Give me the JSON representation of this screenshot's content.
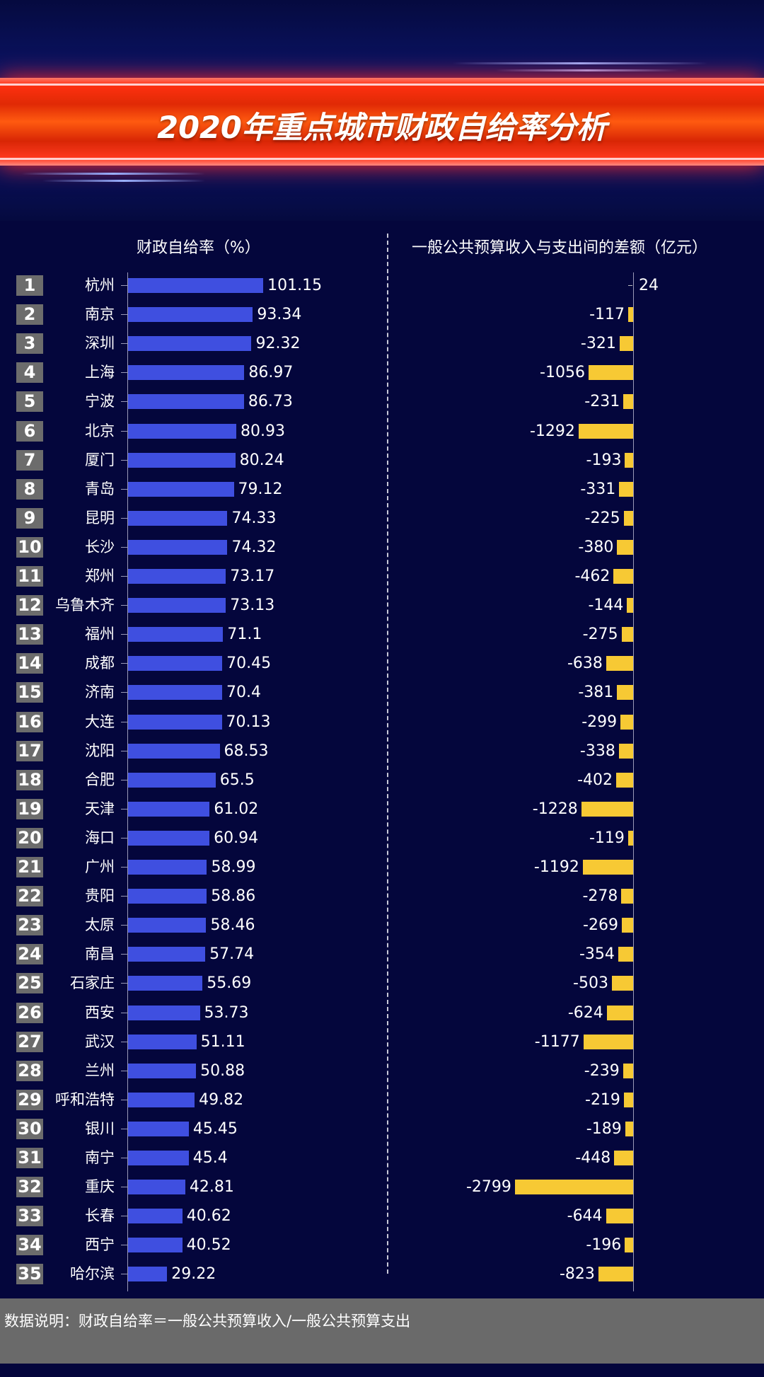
{
  "title": "2020年重点城市财政自给率分析",
  "footer_note": "数据说明：财政自给率＝一般公共预算收入/一般公共预算支出",
  "colors": {
    "background": "#04063c",
    "left_bar": "#3f4fe0",
    "right_bar": "#f7c934",
    "rank_box": "#6c6c6c",
    "banner": "#e02a05"
  },
  "chart_data": [
    {
      "type": "bar",
      "orientation": "horizontal",
      "title": "财政自给率（%）",
      "categories": [
        "杭州",
        "南京",
        "深圳",
        "上海",
        "宁波",
        "北京",
        "厦门",
        "青岛",
        "昆明",
        "长沙",
        "郑州",
        "乌鲁木齐",
        "福州",
        "成都",
        "济南",
        "大连",
        "沈阳",
        "合肥",
        "天津",
        "海口",
        "广州",
        "贵阳",
        "太原",
        "南昌",
        "石家庄",
        "西安",
        "武汉",
        "兰州",
        "呼和浩特",
        "银川",
        "南宁",
        "重庆",
        "长春",
        "西宁",
        "哈尔滨"
      ],
      "ranks": [
        "1",
        "2",
        "3",
        "4",
        "5",
        "6",
        "7",
        "8",
        "9",
        "10",
        "11",
        "12",
        "13",
        "14",
        "15",
        "16",
        "17",
        "18",
        "19",
        "20",
        "21",
        "22",
        "23",
        "24",
        "25",
        "26",
        "27",
        "28",
        "29",
        "30",
        "31",
        "32",
        "33",
        "34",
        "35"
      ],
      "values": [
        101.15,
        93.34,
        92.32,
        86.97,
        86.73,
        80.93,
        80.24,
        79.12,
        74.33,
        74.32,
        73.17,
        73.13,
        71.1,
        70.45,
        70.4,
        70.13,
        68.53,
        65.5,
        61.02,
        60.94,
        58.99,
        58.86,
        58.46,
        57.74,
        55.69,
        53.73,
        51.11,
        50.88,
        49.82,
        45.45,
        45.4,
        42.81,
        40.62,
        40.52,
        29.22
      ],
      "labels": [
        "101.15",
        "93.34",
        "92.32",
        "86.97",
        "86.73",
        "80.93",
        "80.24",
        "79.12",
        "74.33",
        "74.32",
        "73.17",
        "73.13",
        "71.1",
        "70.45",
        "70.4",
        "70.13",
        "68.53",
        "65.5",
        "61.02",
        "60.94",
        "58.99",
        "58.86",
        "58.46",
        "57.74",
        "55.69",
        "53.73",
        "51.11",
        "50.88",
        "49.82",
        "45.45",
        "45.4",
        "42.81",
        "40.62",
        "40.52",
        "29.22"
      ]
    },
    {
      "type": "bar",
      "orientation": "horizontal",
      "title": "一般公共预算收入与支出间的差额（亿元）",
      "categories": [
        "杭州",
        "南京",
        "深圳",
        "上海",
        "宁波",
        "北京",
        "厦门",
        "青岛",
        "昆明",
        "长沙",
        "郑州",
        "乌鲁木齐",
        "福州",
        "成都",
        "济南",
        "大连",
        "沈阳",
        "合肥",
        "天津",
        "海口",
        "广州",
        "贵阳",
        "太原",
        "南昌",
        "石家庄",
        "西安",
        "武汉",
        "兰州",
        "呼和浩特",
        "银川",
        "南宁",
        "重庆",
        "长春",
        "西宁",
        "哈尔滨"
      ],
      "values": [
        24,
        -117,
        -321,
        -1056,
        -231,
        -1292,
        -193,
        -331,
        -225,
        -380,
        -462,
        -144,
        -275,
        -638,
        -381,
        -299,
        -338,
        -402,
        -1228,
        -119,
        -1192,
        -278,
        -269,
        -354,
        -503,
        -624,
        -1177,
        -239,
        -219,
        -189,
        -448,
        -2799,
        -644,
        -196,
        -823
      ],
      "labels": [
        "24",
        "-117",
        "-321",
        "-1056",
        "-231",
        "-1292",
        "-193",
        "-331",
        "-225",
        "-380",
        "-462",
        "-144",
        "-275",
        "-638",
        "-381",
        "-299",
        "-338",
        "-402",
        "-1228",
        "-119",
        "-1192",
        "-278",
        "-269",
        "-354",
        "-503",
        "-624",
        "-1177",
        "-239",
        "-219",
        "-189",
        "-448",
        "-2799",
        "-644",
        "-196",
        "-823"
      ]
    }
  ]
}
